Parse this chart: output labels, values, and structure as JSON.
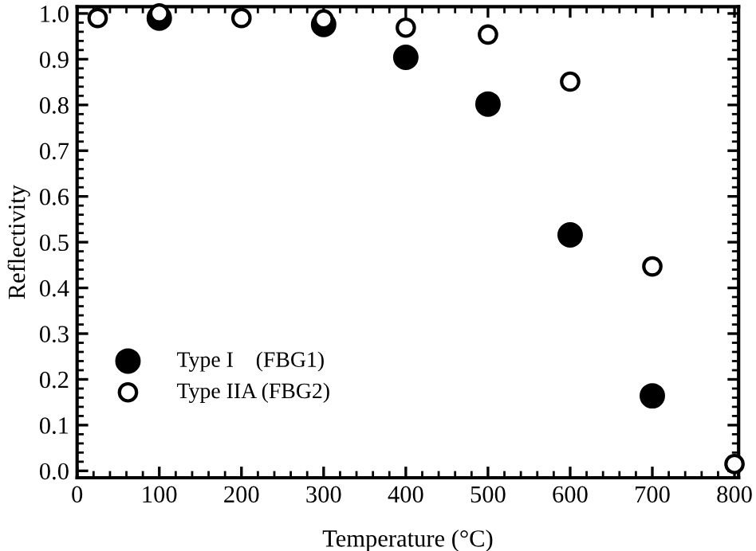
{
  "chart_data": {
    "type": "scatter",
    "xlabel": "Temperature (°C)",
    "ylabel": "Reflectivity",
    "x": [
      25,
      100,
      200,
      300,
      400,
      500,
      600,
      700,
      800
    ],
    "series": [
      {
        "name": "Type I    (FBG1)",
        "color": "#000000",
        "values": [
          null,
          0.99,
          null,
          0.976,
          0.904,
          0.802,
          0.516,
          0.164,
          null
        ]
      },
      {
        "name": "Type IIA (FBG2)",
        "color": "#ffffff",
        "values": [
          0.99,
          1.0,
          0.99,
          0.987,
          0.969,
          0.954,
          0.851,
          0.447,
          0.015
        ]
      }
    ],
    "xlim": [
      0,
      805
    ],
    "ylim": [
      -0.015,
      1.015
    ],
    "xticks": [
      0,
      100,
      200,
      300,
      400,
      500,
      600,
      700,
      800
    ],
    "yticks": [
      {
        "value": 0,
        "label": "0.0"
      },
      0.1,
      0.2,
      0.3,
      0.4,
      0.5,
      0.6,
      0.7,
      0.8,
      0.9,
      {
        "value": 1,
        "label": "1.0"
      }
    ],
    "marker": "circle",
    "grid": false,
    "legend": "left"
  }
}
